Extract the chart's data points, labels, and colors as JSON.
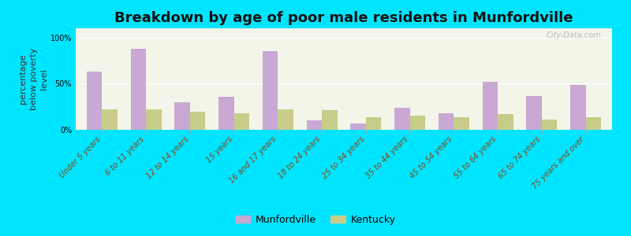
{
  "title": "Breakdown by age of poor male residents in Munfordville",
  "ylabel": "percentage\nbelow poverty\nlevel",
  "categories": [
    "Under 5 years",
    "6 to 11 years",
    "12 to 14 years",
    "15 years",
    "16 and 17 years",
    "18 to 24 years",
    "25 to 34 years",
    "35 to 44 years",
    "45 to 54 years",
    "55 to 64 years",
    "65 to 74 years",
    "75 years and over"
  ],
  "munfordville": [
    63,
    88,
    30,
    36,
    85,
    10,
    7,
    24,
    18,
    52,
    37,
    49
  ],
  "kentucky": [
    22,
    22,
    20,
    18,
    22,
    21,
    14,
    15,
    14,
    17,
    11,
    14
  ],
  "munfordville_color": "#c9a8d4",
  "kentucky_color": "#c8cc8a",
  "background_outer": "#00e5ff",
  "background_inner": "#f2f5e8",
  "ylim": [
    0,
    110
  ],
  "yticks": [
    0,
    50,
    100
  ],
  "ytick_labels": [
    "0%",
    "50%",
    "100%"
  ],
  "bar_width": 0.35,
  "title_fontsize": 13,
  "axis_label_fontsize": 8,
  "tick_fontsize": 7,
  "legend_fontsize": 9,
  "watermark": "City-Data.com"
}
